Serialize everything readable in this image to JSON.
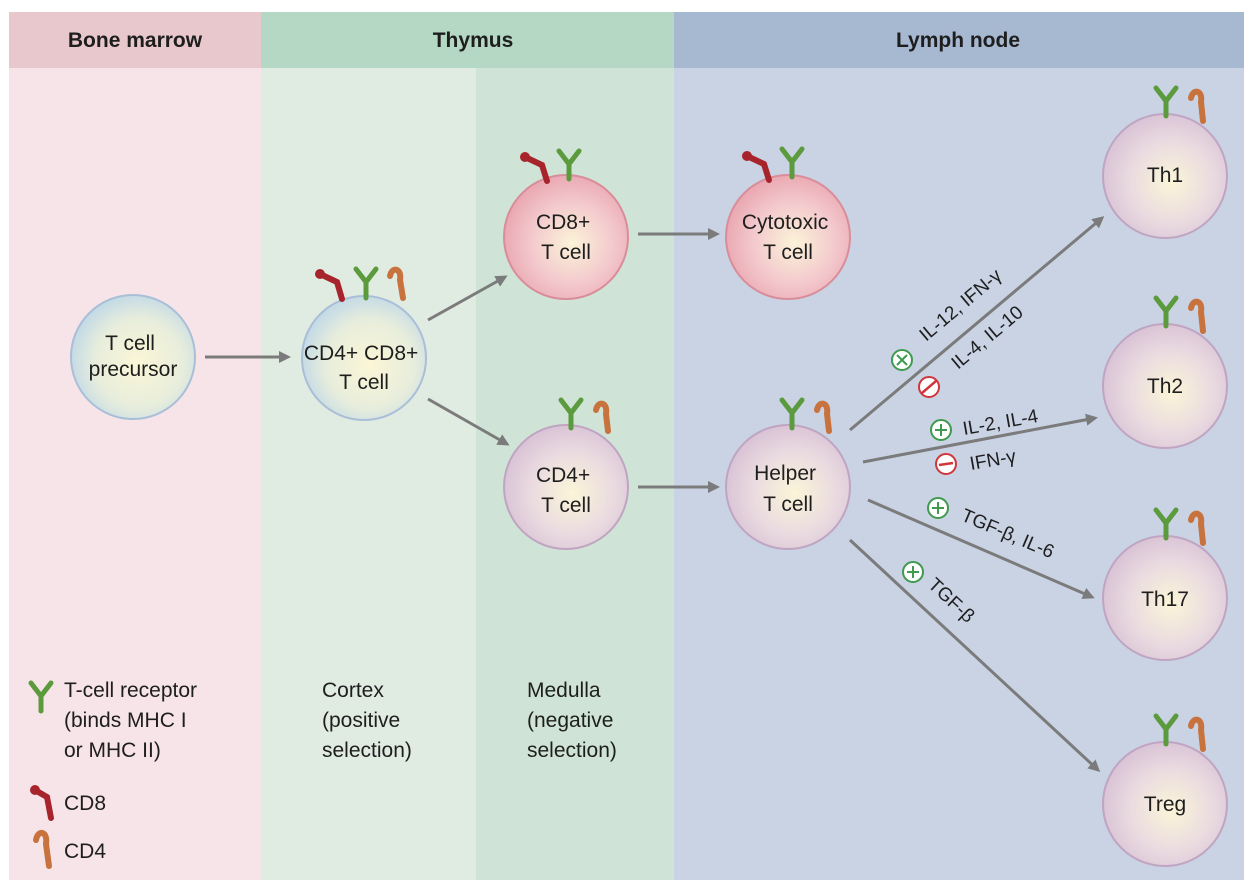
{
  "regions": {
    "bone_marrow": "Bone marrow",
    "thymus": "Thymus",
    "lymph_node": "Lymph node"
  },
  "zones": {
    "cortex": [
      "Cortex",
      "(positive",
      "selection)"
    ],
    "medulla": [
      "Medulla",
      "(negative",
      "selection)"
    ]
  },
  "cells": {
    "precursor": [
      "T cell",
      "precursor"
    ],
    "double_positive": [
      "CD4+ CD8+",
      "T cell"
    ],
    "cd8": [
      "CD8+",
      "T cell"
    ],
    "cd4": [
      "CD4+",
      "T cell"
    ],
    "cytotoxic": [
      "Cytotoxic",
      "T cell"
    ],
    "helper": [
      "Helper",
      "T cell"
    ],
    "th1": "Th1",
    "th2": "Th2",
    "th17": "Th17",
    "treg": "Treg"
  },
  "cytokines": {
    "th1_plus": "IL-12, IFN-γ",
    "th1_minus": "IL-4, IL-10",
    "th2_plus": "IL-2, IL-4",
    "th2_minus": "IFN-γ",
    "th17_plus": "TGF-β, IL-6",
    "treg_plus": "TGF-β"
  },
  "legend": {
    "tcr": [
      "T-cell receptor",
      "(binds MHC I",
      "or MHC II)"
    ],
    "cd8": "CD8",
    "cd4": "CD4"
  },
  "colors": {
    "bone_marrow_bg": "#f7e4e8",
    "bone_marrow_header": "#e8c8cc",
    "cortex_bg": "#e0ebe2",
    "medulla_bg": "#cfe4d6",
    "thymus_header": "#b4d8c4",
    "lymph_bg": "#c9d3e4",
    "lymph_header": "#a7b8d1",
    "tcr": "#5c9a3e",
    "cd8": "#a8242c",
    "cd4": "#c8733e",
    "plus": "#3f9a4e",
    "minus": "#d0363c",
    "arrow": "#7b7b7b"
  }
}
